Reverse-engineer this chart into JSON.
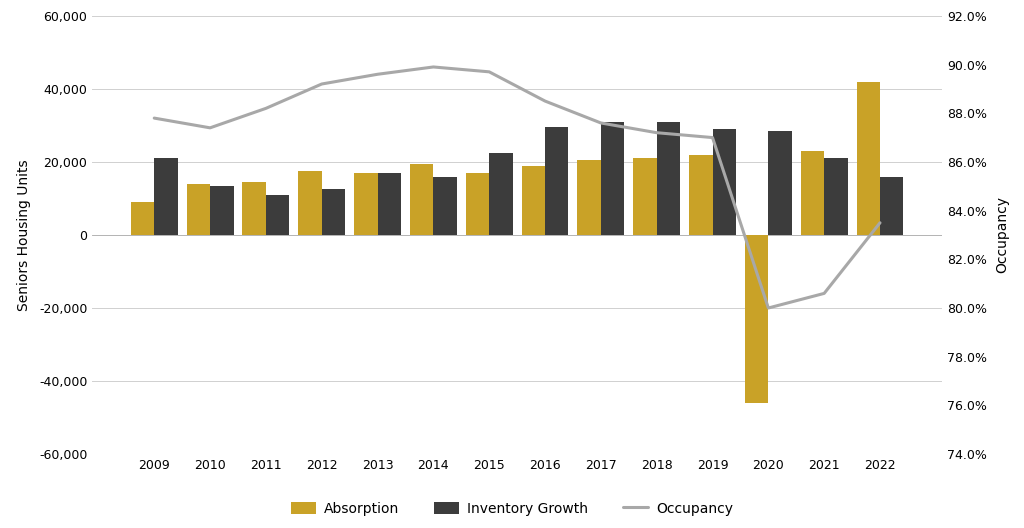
{
  "years": [
    2009,
    2010,
    2011,
    2012,
    2013,
    2014,
    2015,
    2016,
    2017,
    2018,
    2019,
    2020,
    2021,
    2022
  ],
  "absorption": [
    9000,
    14000,
    14500,
    17500,
    17000,
    19500,
    17000,
    19000,
    20500,
    21000,
    22000,
    -46000,
    23000,
    42000
  ],
  "inventory_growth": [
    21000,
    13500,
    11000,
    12500,
    17000,
    16000,
    22500,
    29500,
    31000,
    31000,
    29000,
    28500,
    21000,
    16000
  ],
  "occupancy": [
    0.878,
    0.874,
    0.882,
    0.892,
    0.896,
    0.899,
    0.897,
    0.885,
    0.876,
    0.872,
    0.87,
    0.8,
    0.806,
    0.835
  ],
  "absorption_color": "#C9A227",
  "inventory_color": "#3C3C3C",
  "occupancy_color": "#A8A8A8",
  "background_color": "#FFFFFF",
  "ylabel_left": "Seniors Housing Units",
  "ylabel_right": "Occupancy",
  "ylim_left": [
    -60000,
    60000
  ],
  "ylim_right": [
    0.74,
    0.92
  ],
  "yticks_left": [
    -60000,
    -40000,
    -20000,
    0,
    20000,
    40000,
    60000
  ],
  "yticks_right": [
    0.74,
    0.76,
    0.78,
    0.8,
    0.82,
    0.84,
    0.86,
    0.88,
    0.9,
    0.92
  ],
  "legend_labels": [
    "Absorption",
    "Inventory Growth",
    "Occupancy"
  ],
  "bar_width": 0.42,
  "grid_color": "#D0D0D0",
  "tick_fontsize": 9,
  "label_fontsize": 10,
  "legend_fontsize": 10
}
